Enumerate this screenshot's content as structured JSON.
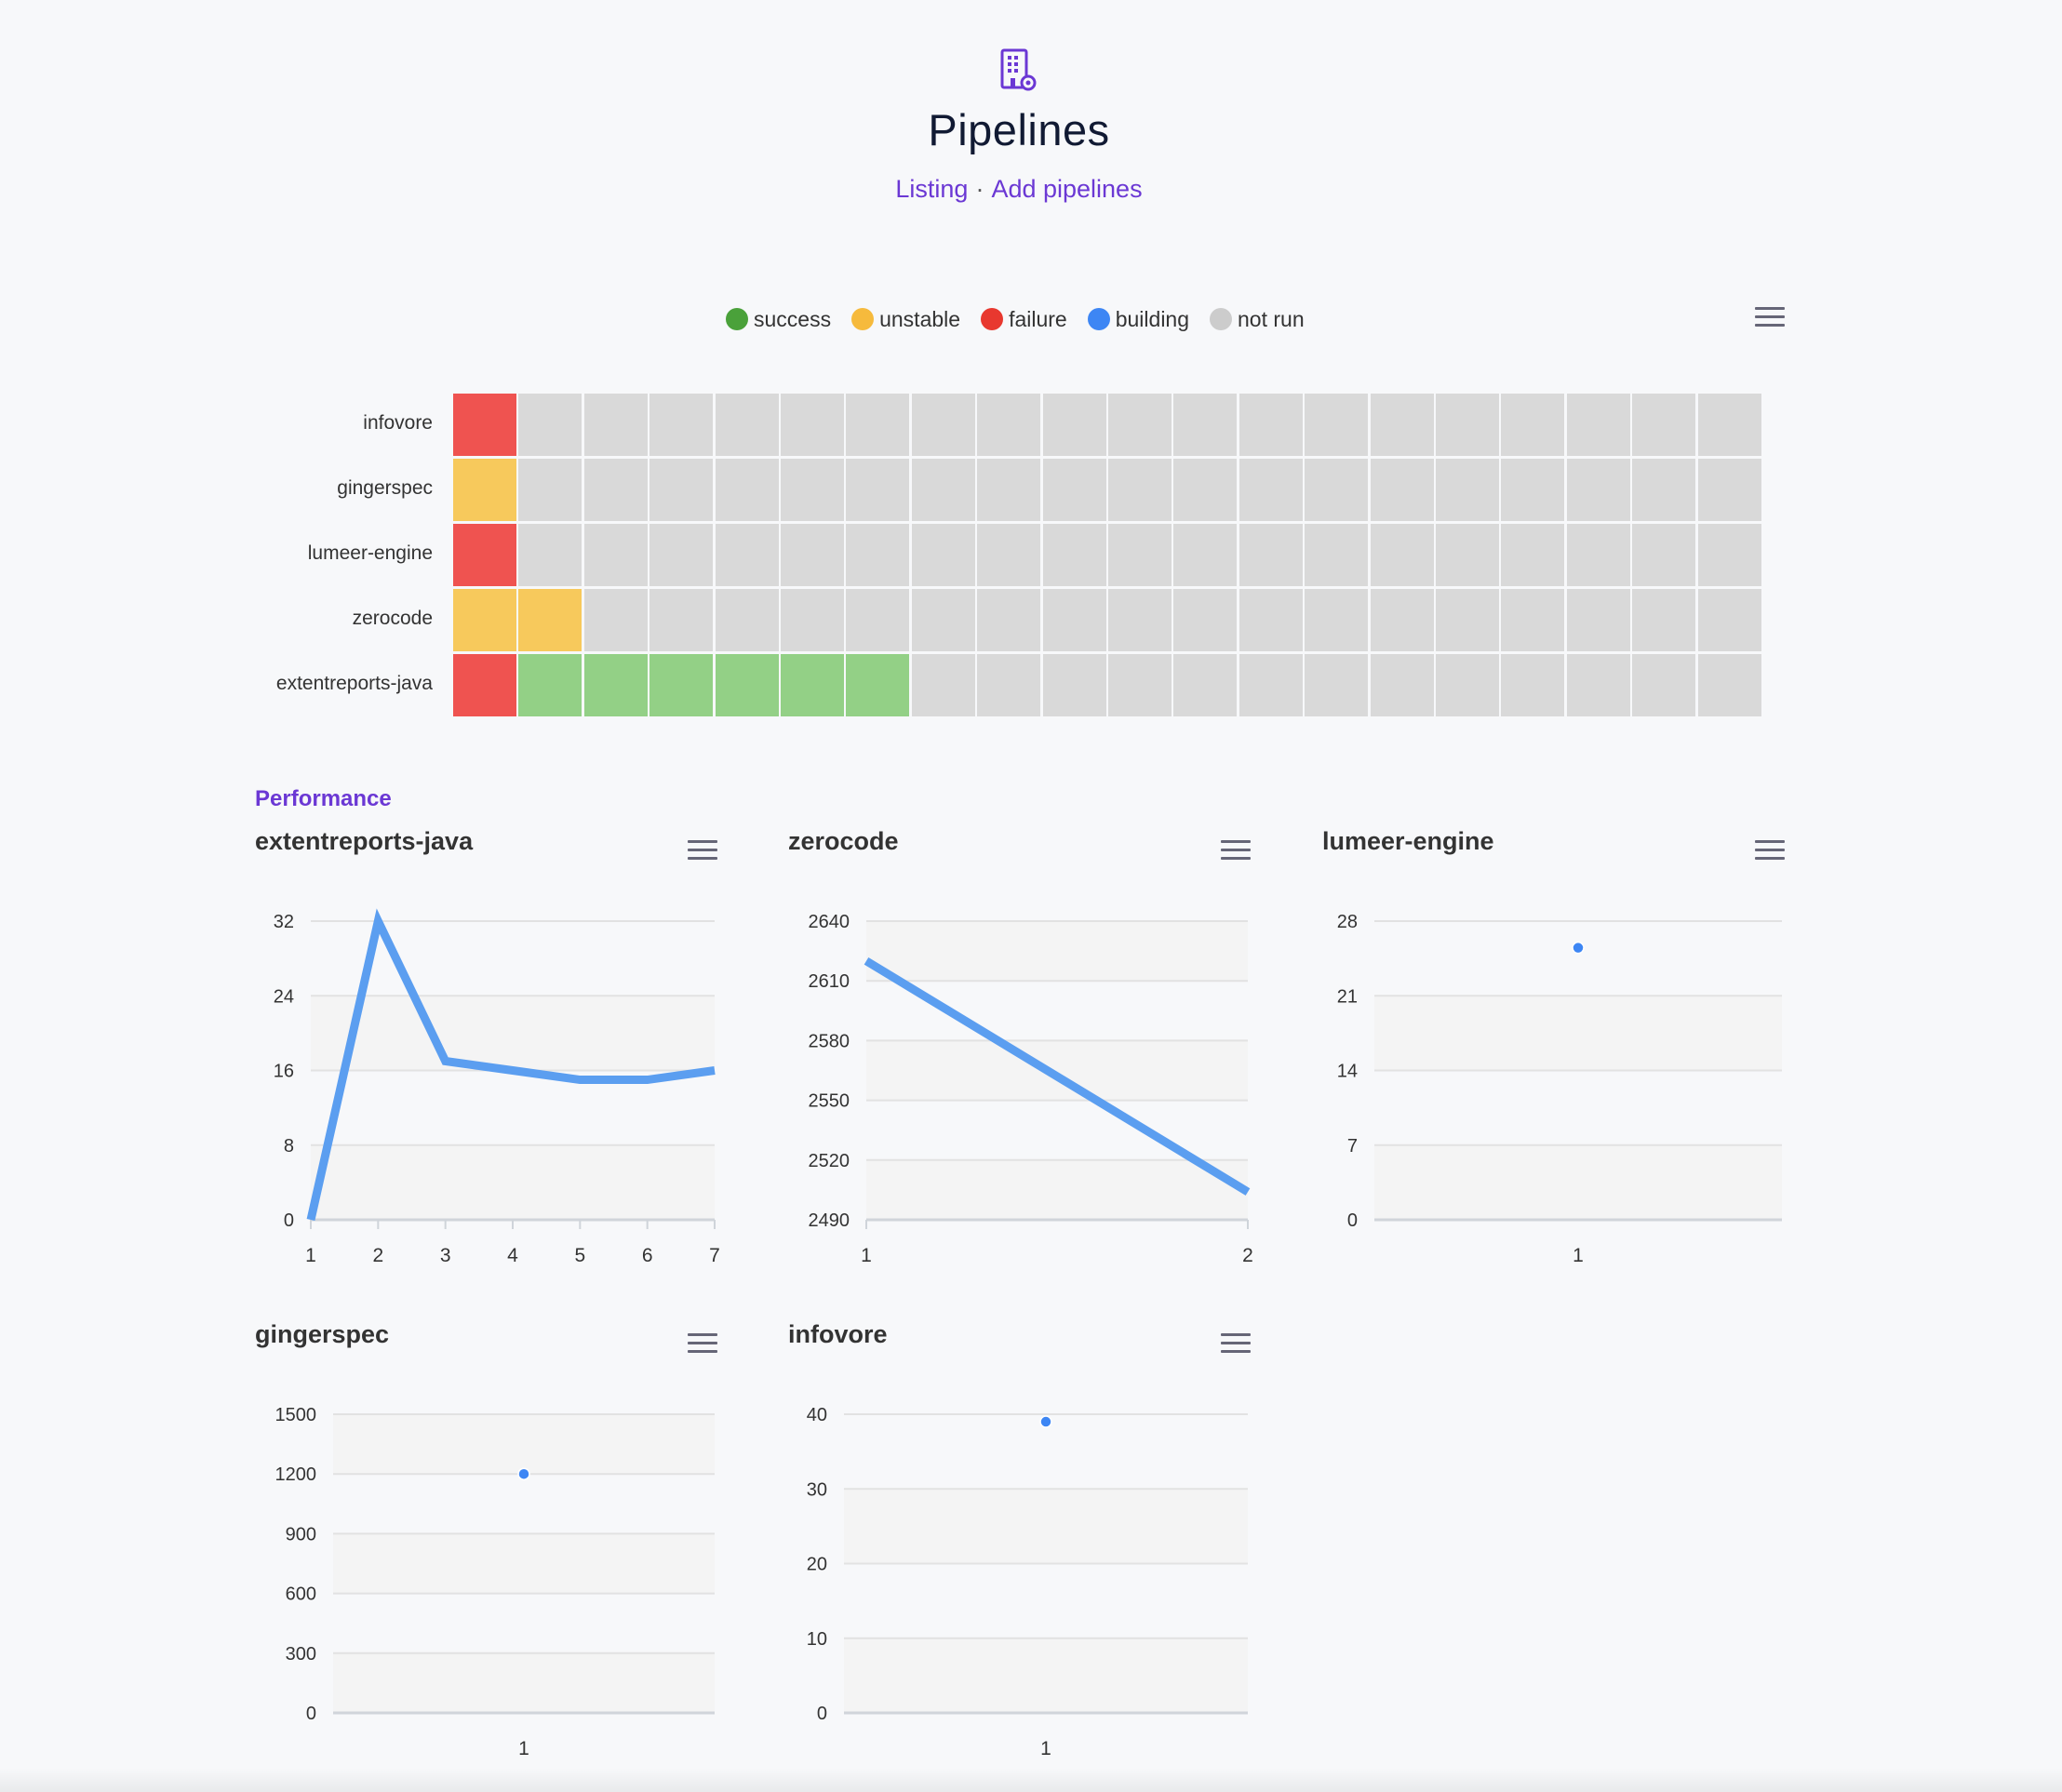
{
  "header": {
    "title": "Pipelines",
    "nav_listing": "Listing",
    "nav_separator": "·",
    "nav_add": "Add pipelines",
    "icon": "building-gear-icon"
  },
  "status_legend": [
    {
      "label": "success",
      "color": "#4aa13a"
    },
    {
      "label": "unstable",
      "color": "#f6ba3c"
    },
    {
      "label": "failure",
      "color": "#e8382f"
    },
    {
      "label": "building",
      "color": "#3d86f4"
    },
    {
      "label": "not run",
      "color": "#cccccc"
    }
  ],
  "status_colors": {
    "failure": "#ef5350",
    "unstable": "#f7c95c",
    "success": "#93d086",
    "not_run": "#d9d9d9"
  },
  "heatmap": {
    "columns": 20,
    "rows": [
      {
        "name": "infovore",
        "statuses": [
          "failure"
        ]
      },
      {
        "name": "gingerspec",
        "statuses": [
          "unstable"
        ]
      },
      {
        "name": "lumeer-engine",
        "statuses": [
          "failure"
        ]
      },
      {
        "name": "zerocode",
        "statuses": [
          "unstable",
          "unstable"
        ]
      },
      {
        "name": "extentreports-java",
        "statuses": [
          "failure",
          "success",
          "success",
          "success",
          "success",
          "success",
          "success"
        ]
      }
    ]
  },
  "performance": {
    "label": "Performance"
  },
  "chart_data": [
    {
      "type": "line",
      "title": "extentreports-java",
      "x": [
        1,
        2,
        3,
        4,
        5,
        6,
        7
      ],
      "values": [
        0,
        32,
        17,
        16,
        15,
        15,
        16
      ],
      "yticks": [
        0,
        8,
        16,
        24,
        32
      ],
      "ylim": [
        0,
        32
      ],
      "grid": true
    },
    {
      "type": "line",
      "title": "zerocode",
      "x": [
        1,
        2
      ],
      "values": [
        2620,
        2504
      ],
      "yticks": [
        2490,
        2520,
        2550,
        2580,
        2610,
        2640
      ],
      "ylim": [
        2490,
        2640
      ],
      "grid": true
    },
    {
      "type": "scatter",
      "title": "lumeer-engine",
      "x": [
        1
      ],
      "values": [
        25.5
      ],
      "yticks": [
        0,
        7,
        14,
        21,
        28
      ],
      "ylim": [
        0,
        28
      ],
      "grid": true
    },
    {
      "type": "scatter",
      "title": "gingerspec",
      "x": [
        1
      ],
      "values": [
        1200
      ],
      "yticks": [
        0,
        300,
        600,
        900,
        1200,
        1500
      ],
      "ylim": [
        0,
        1500
      ],
      "grid": true
    },
    {
      "type": "scatter",
      "title": "infovore",
      "x": [
        1
      ],
      "values": [
        39
      ],
      "yticks": [
        0,
        10,
        20,
        30,
        40
      ],
      "ylim": [
        0,
        40
      ],
      "grid": true
    }
  ]
}
